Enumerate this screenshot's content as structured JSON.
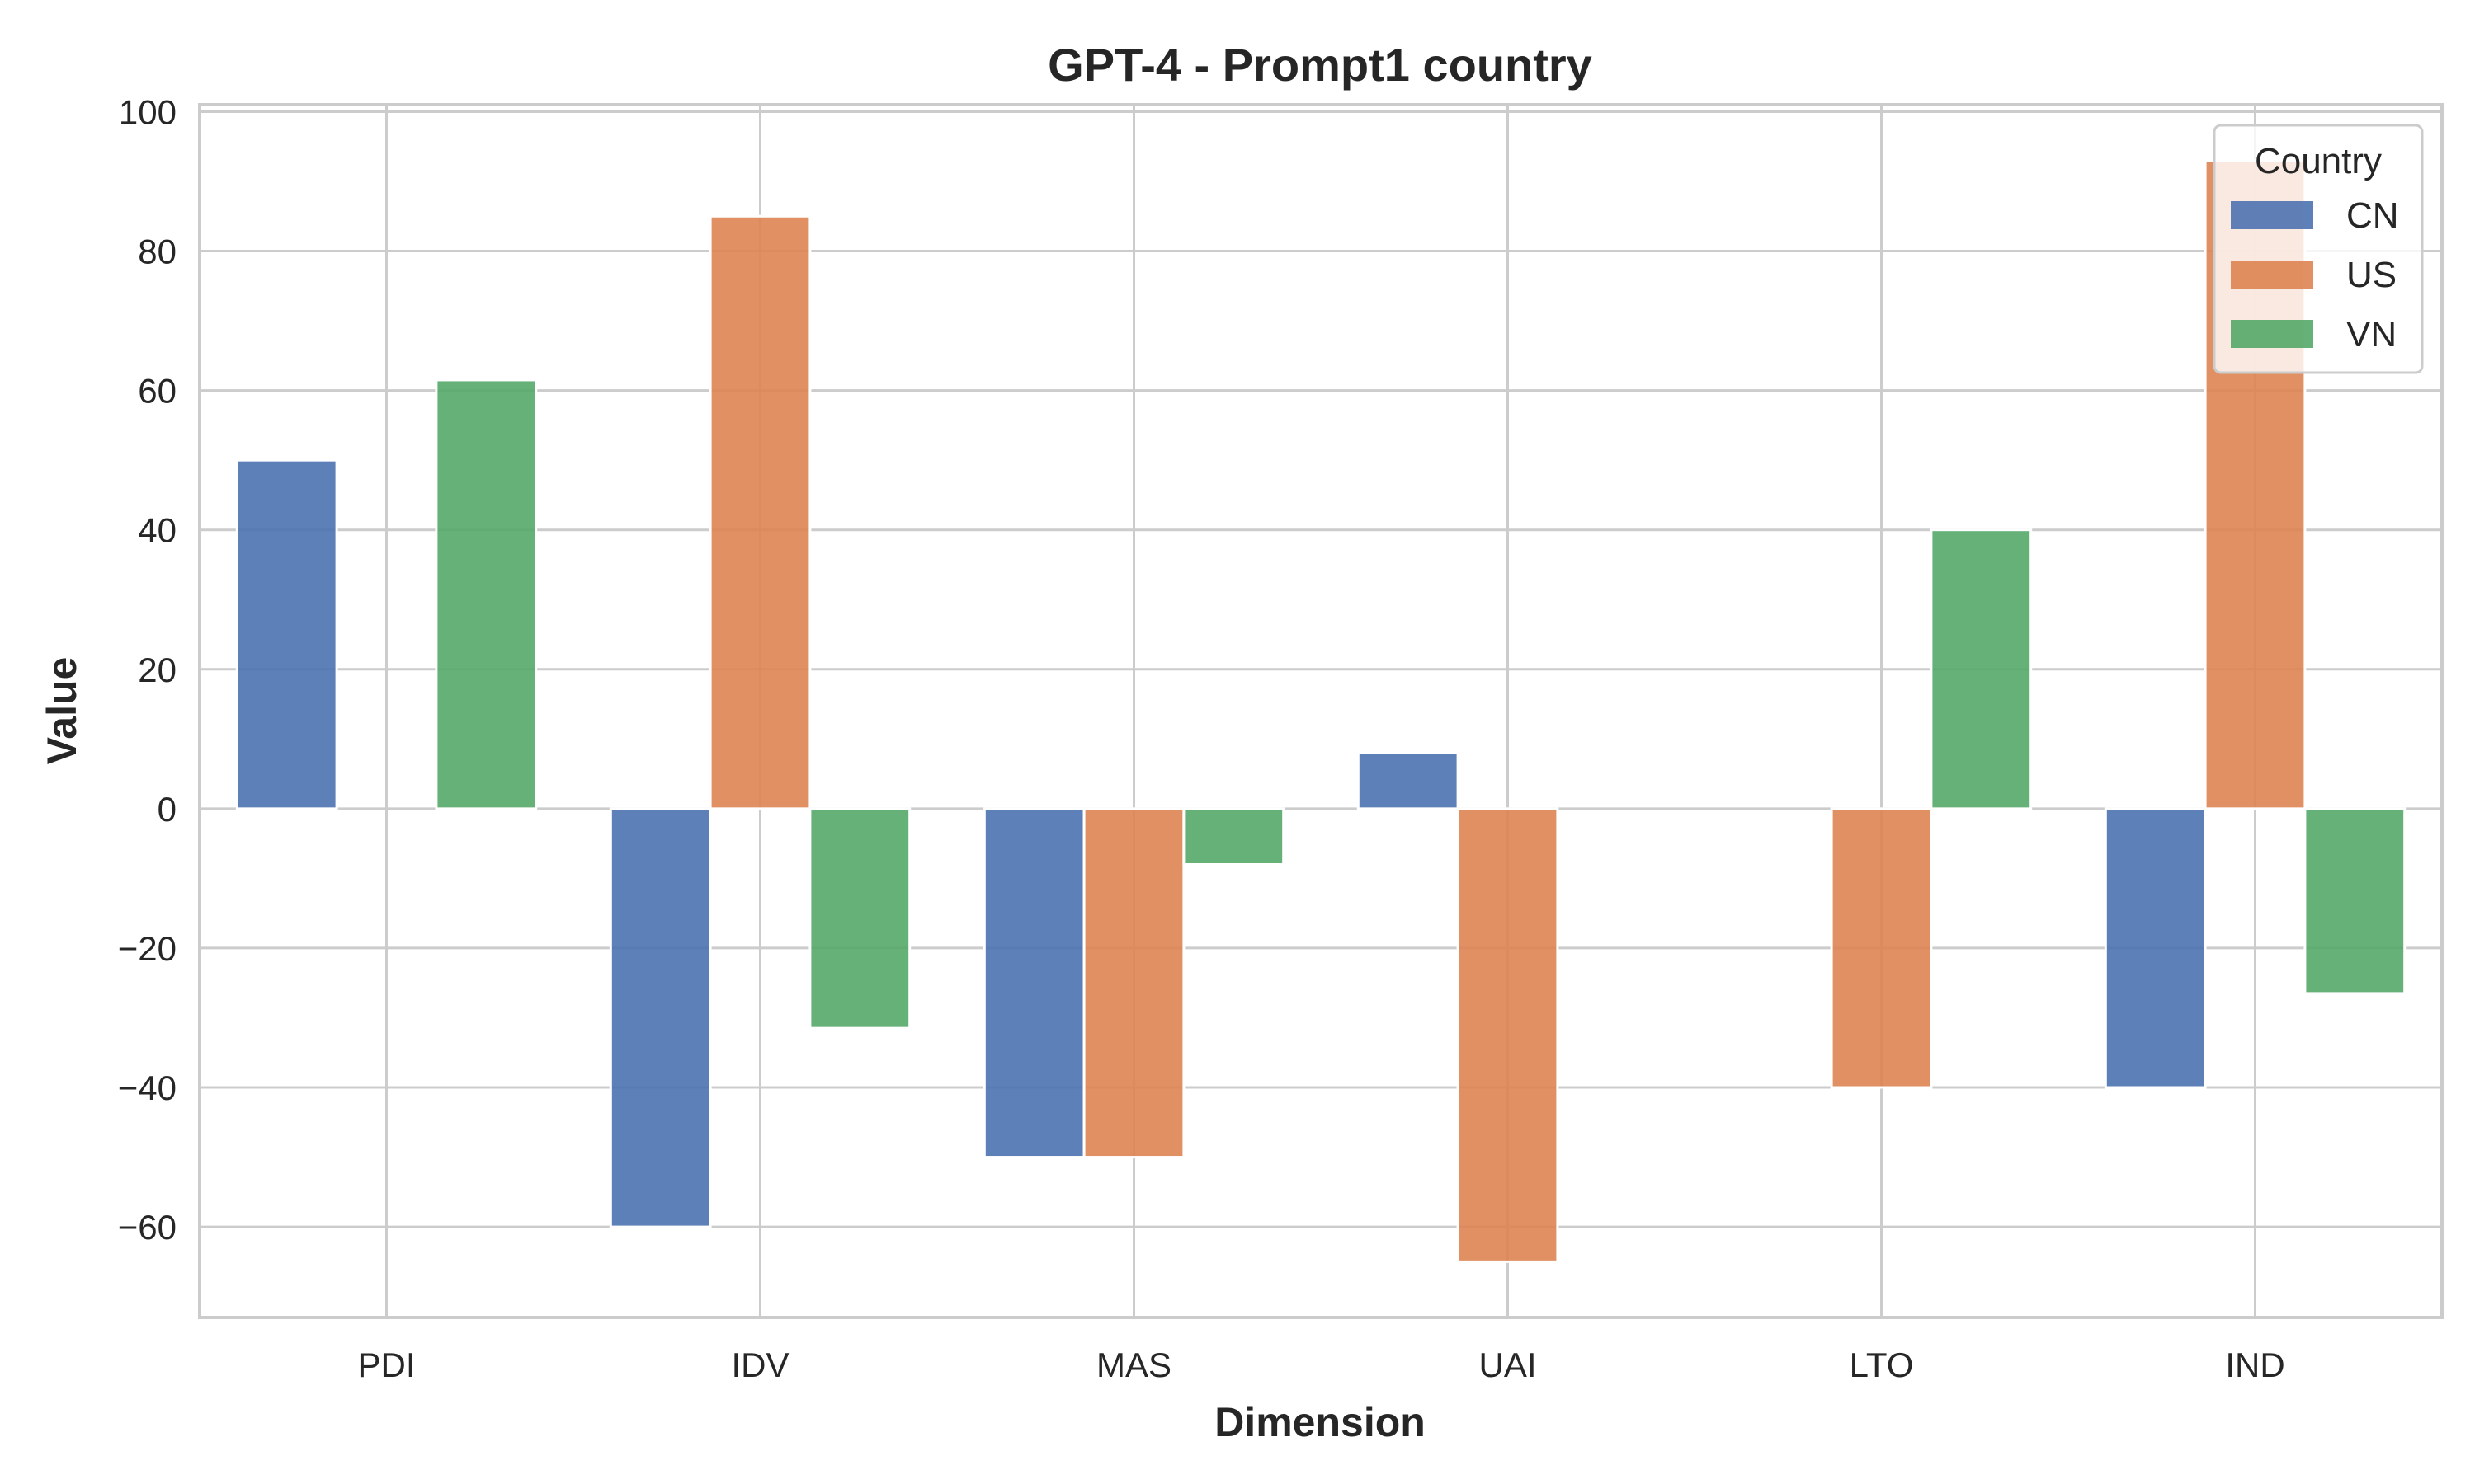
{
  "chart_data": {
    "type": "bar",
    "title": "GPT-4 - Prompt1 country",
    "xlabel": "Dimension",
    "ylabel": "Value",
    "categories": [
      "PDI",
      "IDV",
      "MAS",
      "UAI",
      "LTO",
      "IND"
    ],
    "ylim": [
      -73,
      101
    ],
    "yticks": [
      -60,
      -40,
      -20,
      0,
      20,
      40,
      60,
      80,
      100
    ],
    "ytick_labels": [
      "−60",
      "−40",
      "−20",
      "0",
      "20",
      "40",
      "60",
      "80",
      "100"
    ],
    "grid": true,
    "legend": {
      "title": "Country",
      "placement": "top-right"
    },
    "series": [
      {
        "name": "CN",
        "color": "#4c72b0",
        "values": [
          50,
          -60,
          -50,
          8,
          0,
          -40
        ]
      },
      {
        "name": "US",
        "color": "#dd8452",
        "values": [
          0,
          85,
          -50,
          -65,
          -40,
          93
        ]
      },
      {
        "name": "VN",
        "color": "#55a868",
        "values": [
          61.5,
          -31.5,
          -8,
          0,
          40,
          -26.5
        ]
      }
    ]
  }
}
